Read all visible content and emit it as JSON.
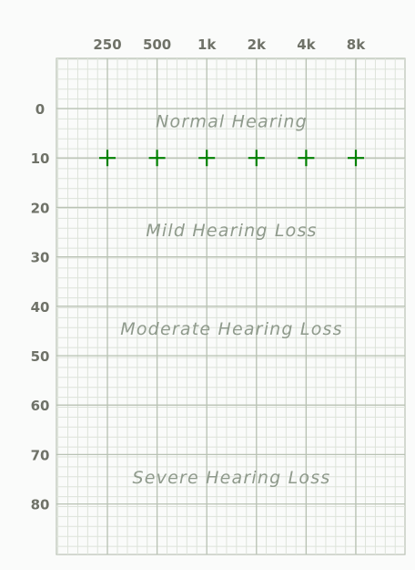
{
  "chart_data": {
    "type": "scatter",
    "title": "",
    "xlabel": "",
    "ylabel": "",
    "x_categories": [
      "250",
      "500",
      "1k",
      "2k",
      "4k",
      "8k"
    ],
    "y_ticks": [
      0,
      10,
      20,
      30,
      40,
      50,
      60,
      70,
      80
    ],
    "ylim": [
      -10,
      90
    ],
    "y_inverted": true,
    "grid": true,
    "marker": "+",
    "series": [
      {
        "x": [
          "250",
          "500",
          "1k",
          "2k",
          "4k",
          "8k"
        ],
        "values": [
          10,
          10,
          10,
          10,
          10,
          10
        ]
      }
    ],
    "zones": [
      {
        "label": "Normal Hearing",
        "db": 2.5
      },
      {
        "label": "Mild Hearing Loss",
        "db": 24.5
      },
      {
        "label": "Moderate Hearing Loss",
        "db": 44.5
      },
      {
        "label": "Severe Hearing Loss",
        "db": 74.5
      }
    ],
    "colors": {
      "grid_minor": "#dde3da",
      "grid_major": "#b9c2b4",
      "marker": "#008000",
      "background": "#fafbfa"
    }
  }
}
